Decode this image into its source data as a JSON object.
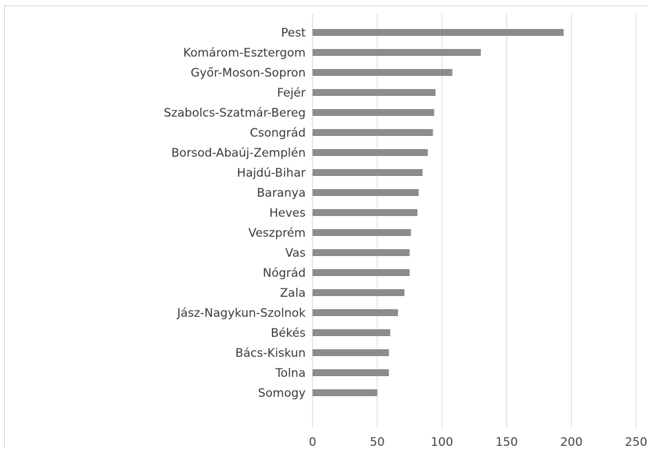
{
  "chart_data": {
    "type": "bar",
    "orientation": "horizontal",
    "categories": [
      "Pest",
      "Komárom-Esztergom",
      "Győr-Moson-Sopron",
      "Fejér",
      "Szabolcs-Szatmár-Bereg",
      "Csongrád",
      "Borsod-Abaúj-Zemplén",
      "Hajdú-Bihar",
      "Baranya",
      "Heves",
      "Veszprém",
      "Vas",
      "Nógrád",
      "Zala",
      "Jász-Nagykun-Szolnok",
      "Békés",
      "Bács-Kiskun",
      "Tolna",
      "Somogy"
    ],
    "values": [
      194,
      130,
      108,
      95,
      94,
      93,
      89,
      85,
      82,
      81,
      76,
      75,
      75,
      71,
      66,
      60,
      59,
      59,
      50
    ],
    "x_ticks": [
      "0",
      "50",
      "100",
      "150",
      "200",
      "250"
    ],
    "xlim": [
      0,
      250
    ],
    "title": "",
    "xlabel": "",
    "ylabel": "",
    "grid": "vertical",
    "legend": "none",
    "bar_color": "#8c8c8c"
  }
}
